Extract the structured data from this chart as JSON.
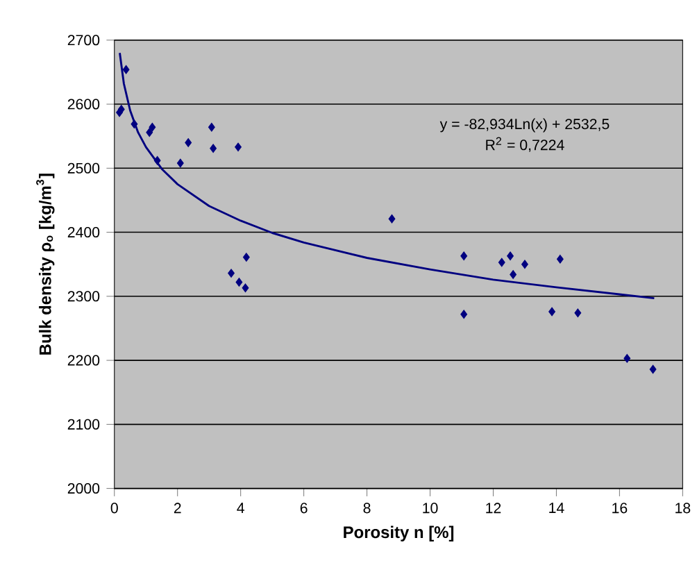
{
  "chart_data": {
    "type": "scatter",
    "xlabel": "Porosity n [%]",
    "ylabel": "Bulk density   ρ$_{o}$ [kg/m$^{3}$]",
    "annotations": [
      "y = -82,934Ln(x) + 2532,5",
      "R$^{2}$ = 0,7224"
    ],
    "xlim": [
      0,
      18
    ],
    "ylim": [
      2000,
      2700
    ],
    "xticks": [
      0,
      2,
      4,
      6,
      8,
      10,
      12,
      14,
      16,
      18
    ],
    "yticks": [
      2000,
      2100,
      2200,
      2300,
      2400,
      2500,
      2600,
      2700
    ],
    "grid": "y",
    "series": [
      {
        "marker": "diamond",
        "color": "#000080",
        "x": [
          0.16,
          0.22,
          0.37,
          0.63,
          1.11,
          1.2,
          1.36,
          2.09,
          2.34,
          3.08,
          3.13,
          3.92,
          4.18,
          3.7,
          3.95,
          4.15,
          8.79,
          11.07,
          11.07,
          12.27,
          12.54,
          12.63,
          13.0,
          14.12,
          13.86,
          14.68,
          16.24,
          17.06
        ],
        "values": [
          2587,
          2592,
          2654,
          2569,
          2556,
          2564,
          2512,
          2508,
          2540,
          2564,
          2531,
          2533,
          2361,
          2336,
          2322,
          2313,
          2421,
          2363,
          2272,
          2353,
          2363,
          2334,
          2350,
          2358,
          2276,
          2274,
          2203,
          2186
        ]
      },
      {
        "type": "line",
        "marker": "none",
        "line_style": "solid",
        "color": "#000080",
        "x": [
          0.17,
          0.3,
          0.5,
          0.75,
          1,
          1.5,
          2,
          3,
          4,
          5,
          6,
          8,
          10,
          12,
          14,
          16,
          17.1
        ],
        "values": [
          2680,
          2632,
          2590,
          2556,
          2533,
          2499,
          2475,
          2441,
          2418,
          2399,
          2384,
          2360,
          2342,
          2326,
          2314,
          2303,
          2297
        ]
      }
    ]
  }
}
